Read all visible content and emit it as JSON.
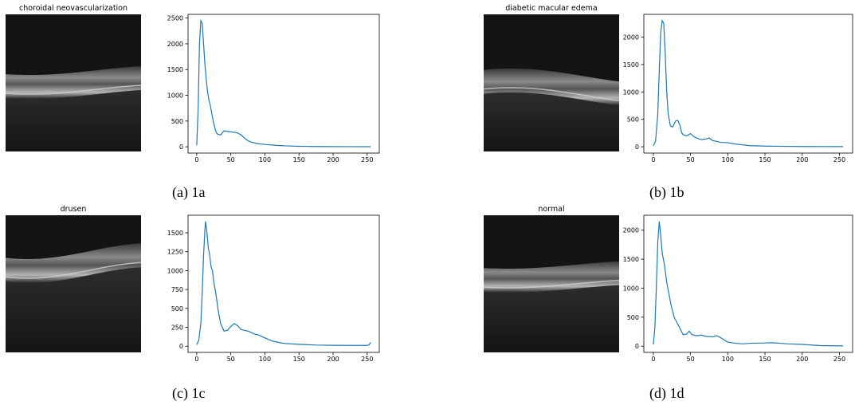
{
  "chart_data": [
    {
      "type": "line",
      "title": "choroidal neovascularization",
      "caption": "(a) 1a",
      "color": "#1f77b4",
      "x": [
        0,
        2,
        4,
        6,
        8,
        10,
        12,
        14,
        16,
        18,
        20,
        22,
        25,
        28,
        30,
        35,
        40,
        45,
        50,
        55,
        60,
        65,
        70,
        75,
        80,
        90,
        100,
        110,
        120,
        130,
        150,
        175,
        200,
        225,
        255
      ],
      "values": [
        30,
        700,
        2000,
        2450,
        2400,
        2000,
        1600,
        1300,
        1050,
        900,
        800,
        650,
        450,
        300,
        250,
        230,
        310,
        300,
        290,
        280,
        270,
        230,
        170,
        120,
        90,
        60,
        45,
        35,
        25,
        18,
        10,
        6,
        4,
        3,
        2
      ],
      "xlim": [
        -12.75,
        267.75
      ],
      "xticks": [
        0,
        50,
        100,
        150,
        200,
        250
      ],
      "ylim": [
        -122,
        2572
      ],
      "yticks": [
        0,
        500,
        1000,
        1500,
        2000,
        2500
      ]
    },
    {
      "type": "line",
      "title": "diabetic macular edema",
      "caption": "(b) 1b",
      "color": "#1f77b4",
      "x": [
        0,
        3,
        6,
        8,
        10,
        12,
        14,
        16,
        18,
        20,
        23,
        26,
        30,
        33,
        36,
        38,
        40,
        45,
        50,
        55,
        60,
        65,
        70,
        75,
        80,
        85,
        90,
        100,
        110,
        120,
        130,
        150,
        175,
        200,
        225,
        255
      ],
      "values": [
        20,
        100,
        600,
        1400,
        2100,
        2300,
        2250,
        1700,
        1000,
        600,
        380,
        360,
        470,
        480,
        380,
        260,
        220,
        200,
        240,
        180,
        150,
        130,
        140,
        160,
        110,
        100,
        80,
        75,
        50,
        35,
        20,
        12,
        8,
        5,
        4,
        3
      ],
      "xlim": [
        -12.75,
        267.75
      ],
      "xticks": [
        0,
        50,
        100,
        150,
        200,
        250
      ],
      "ylim": [
        -115,
        2415
      ],
      "yticks": [
        0,
        500,
        1000,
        1500,
        2000
      ]
    },
    {
      "type": "line",
      "title": "drusen",
      "caption": "(c) 1c",
      "color": "#1f77b4",
      "x": [
        0,
        3,
        6,
        8,
        10,
        12,
        13,
        15,
        17,
        19,
        21,
        23,
        25,
        28,
        31,
        35,
        40,
        45,
        50,
        55,
        60,
        65,
        70,
        75,
        80,
        85,
        90,
        95,
        100,
        110,
        120,
        130,
        150,
        175,
        200,
        225,
        250,
        253,
        255
      ],
      "values": [
        20,
        80,
        300,
        700,
        1200,
        1550,
        1650,
        1500,
        1300,
        1200,
        1050,
        1000,
        850,
        700,
        500,
        300,
        200,
        210,
        260,
        300,
        270,
        220,
        210,
        200,
        180,
        160,
        150,
        130,
        110,
        70,
        50,
        35,
        25,
        15,
        12,
        10,
        10,
        20,
        50
      ],
      "xlim": [
        -12.75,
        267.75
      ],
      "xticks": [
        0,
        50,
        100,
        150,
        200,
        250
      ],
      "ylim": [
        -82,
        1732
      ],
      "yticks": [
        0,
        250,
        500,
        750,
        1000,
        1250,
        1500
      ]
    },
    {
      "type": "line",
      "title": "normal",
      "caption": "(d) 1d",
      "color": "#1f77b4",
      "x": [
        0,
        2,
        4,
        6,
        8,
        10,
        12,
        15,
        18,
        21,
        24,
        28,
        32,
        36,
        40,
        45,
        48,
        52,
        58,
        65,
        70,
        80,
        85,
        90,
        95,
        100,
        110,
        120,
        130,
        150,
        160,
        170,
        180,
        200,
        225,
        255
      ],
      "values": [
        30,
        300,
        1000,
        1800,
        2150,
        1900,
        1600,
        1400,
        1100,
        900,
        700,
        500,
        400,
        300,
        200,
        210,
        260,
        200,
        180,
        190,
        170,
        160,
        180,
        150,
        110,
        70,
        50,
        40,
        50,
        55,
        60,
        50,
        40,
        30,
        10,
        5
      ],
      "xlim": [
        -12.75,
        267.75
      ],
      "xticks": [
        0,
        50,
        100,
        150,
        200,
        250
      ],
      "ylim": [
        -107,
        2257
      ],
      "yticks": [
        0,
        500,
        1000,
        1500,
        2000
      ]
    }
  ]
}
